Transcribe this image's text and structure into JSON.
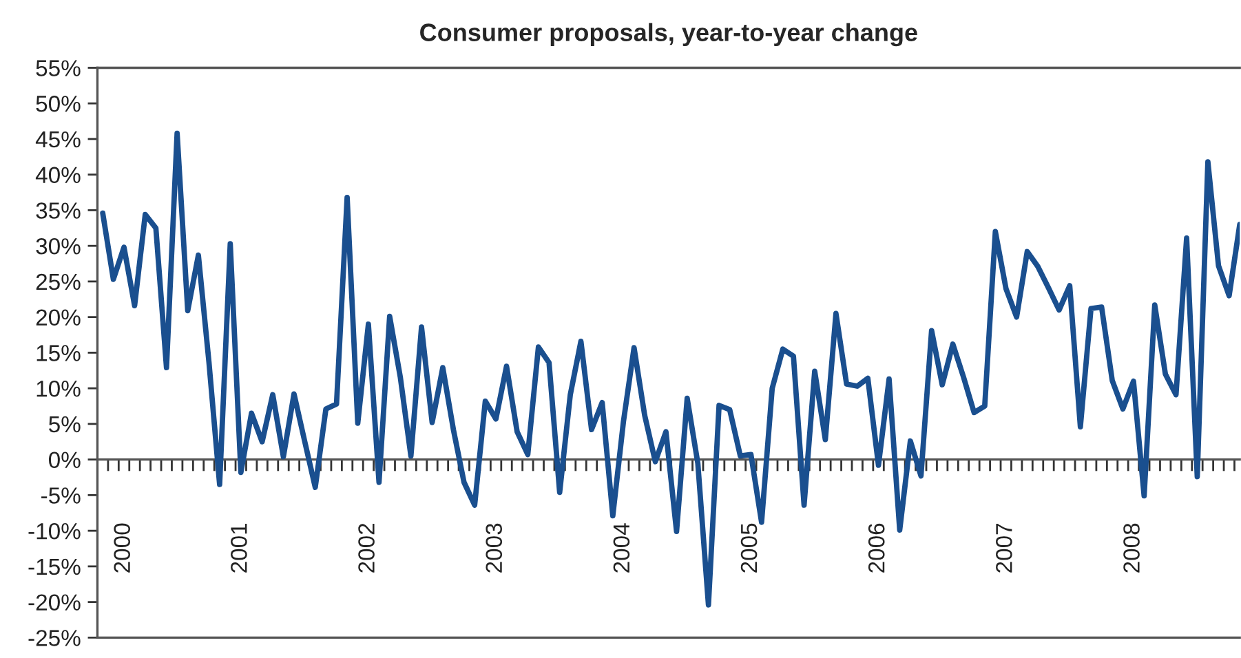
{
  "chart_data": {
    "type": "line",
    "title": "Consumer proposals, year-to-year change",
    "categories": [
      null,
      null,
      "2000",
      null,
      null,
      null,
      null,
      null,
      null,
      null,
      null,
      null,
      null,
      "2001",
      null,
      null,
      null,
      null,
      null,
      null,
      null,
      null,
      null,
      null,
      null,
      "2002",
      null,
      null,
      null,
      null,
      null,
      null,
      null,
      null,
      null,
      null,
      null,
      "2003",
      null,
      null,
      null,
      null,
      null,
      null,
      null,
      null,
      null,
      null,
      null,
      "2004",
      null,
      null,
      null,
      null,
      null,
      null,
      null,
      null,
      null,
      null,
      null,
      "2005",
      null,
      null,
      null,
      null,
      null,
      null,
      null,
      null,
      null,
      null,
      null,
      "2006",
      null,
      null,
      null,
      null,
      null,
      null,
      null,
      null,
      null,
      null,
      null,
      "2007",
      null,
      null,
      null,
      null,
      null,
      null,
      null,
      null,
      null,
      null,
      null,
      "2008",
      null,
      null,
      null,
      null,
      null,
      null,
      null,
      null,
      null,
      null
    ],
    "series": [
      {
        "color": "#1a4f8f",
        "values": [
          34.6,
          25.3,
          29.8,
          21.6,
          34.4,
          32.5,
          12.9,
          45.8,
          20.9,
          28.7,
          13.6,
          -3.5,
          30.3,
          -1.8,
          6.5,
          2.5,
          9.1,
          0.4,
          9.2,
          2.6,
          -3.9,
          7.1,
          7.8,
          36.8,
          5.1,
          19.0,
          -3.2,
          20.1,
          11.6,
          0.5,
          18.6,
          5.2,
          12.9,
          4.2,
          -3.2,
          -6.4,
          8.2,
          5.7,
          13.1,
          3.9,
          0.7,
          15.8,
          13.6,
          -4.6,
          9.1,
          16.6,
          4.2,
          8.0,
          -7.9,
          5.3,
          15.7,
          6.2,
          -0.3,
          3.9,
          -10.1,
          8.6,
          -0.5,
          -20.4,
          7.6,
          7.0,
          0.5,
          0.7,
          -8.8,
          10.0,
          15.5,
          14.5,
          -6.4,
          12.4,
          2.8,
          20.5,
          10.6,
          10.3,
          11.4,
          -0.8,
          11.3,
          -9.9,
          2.6,
          -2.3,
          18.1,
          10.5,
          16.2,
          11.6,
          6.6,
          7.5,
          32.0,
          24.0,
          20.0,
          29.2,
          27.1,
          24.1,
          21.0,
          24.4,
          4.6,
          21.2,
          21.4,
          11.1,
          7.1,
          11.0,
          -5.1,
          21.7,
          12.0,
          9.1,
          31.1,
          -2.4,
          41.8,
          27.2,
          23.0,
          33.0
        ]
      }
    ],
    "ylim": [
      -25,
      55
    ],
    "yticks": [
      {
        "value": -25,
        "label": "-25%"
      },
      {
        "value": -20,
        "label": "-20%"
      },
      {
        "value": -15,
        "label": "-15%"
      },
      {
        "value": -10,
        "label": "-10%"
      },
      {
        "value": -5,
        "label": "-5%"
      },
      {
        "value": 0,
        "label": "0%"
      },
      {
        "value": 5,
        "label": "5%"
      },
      {
        "value": 10,
        "label": "10%"
      },
      {
        "value": 15,
        "label": "15%"
      },
      {
        "value": 20,
        "label": "20%"
      },
      {
        "value": 25,
        "label": "25%"
      },
      {
        "value": 30,
        "label": "30%"
      },
      {
        "value": 35,
        "label": "35%"
      },
      {
        "value": 40,
        "label": "40%"
      },
      {
        "value": 45,
        "label": "45%"
      },
      {
        "value": 50,
        "label": "50%"
      },
      {
        "value": 55,
        "label": "55%"
      }
    ],
    "legend": false,
    "marker": "none",
    "line_style": "solid"
  }
}
